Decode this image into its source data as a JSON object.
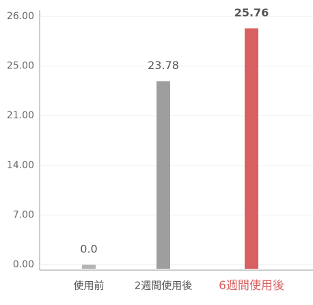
{
  "chart_data": {
    "type": "bar",
    "categories": [
      "使用前",
      "2週間使用後",
      "6週間使用後"
    ],
    "values": [
      0,
      23.78,
      25.76
    ],
    "value_labels": [
      "0.0",
      "23.78",
      "25.76"
    ],
    "colors": [
      "#b5b5b5",
      "#9e9e9e",
      "#d96060"
    ],
    "label_colors": [
      "#555555",
      "#555555",
      "#d96060"
    ],
    "ylim": [
      0,
      26
    ],
    "yticks": [
      {
        "value": 0,
        "label": "0.00"
      },
      {
        "value": 7,
        "label": "7.00"
      },
      {
        "value": 14,
        "label": "14.00"
      },
      {
        "value": 21,
        "label": "21.00"
      },
      {
        "value": 25,
        "label": "25.00"
      },
      {
        "value": 26,
        "label": "26.00"
      }
    ],
    "grid": true
  }
}
